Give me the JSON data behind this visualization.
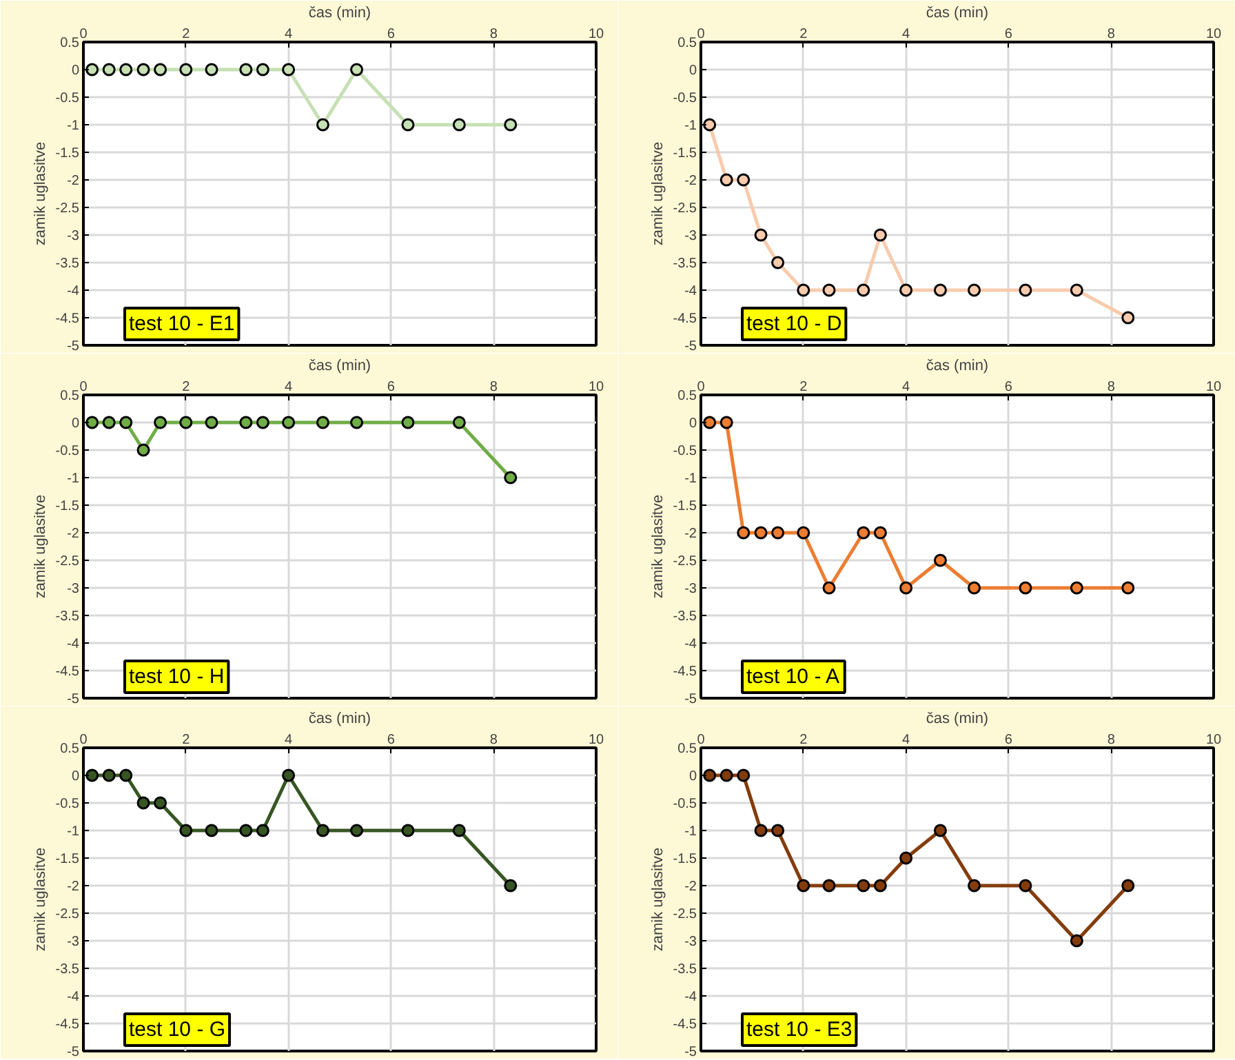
{
  "chart_data": [
    {
      "type": "line",
      "xlabel": "čas (min)",
      "ylabel": "zamik uglasitve",
      "annotations": [
        "test 10 - E1"
      ],
      "xlim": [
        0,
        10
      ],
      "ylim": [
        -5,
        0.5
      ],
      "xticks": [
        0,
        2,
        4,
        6,
        8,
        10
      ],
      "yticks": [
        -5,
        -4.5,
        -4,
        -3.5,
        -3,
        -2.5,
        -2,
        -1.5,
        -1,
        -0.5,
        0,
        0.5
      ],
      "grid": true,
      "marker": "circle",
      "x": [
        0.17,
        0.5,
        0.83,
        1.17,
        1.5,
        2,
        2.5,
        3.17,
        3.5,
        4,
        4.67,
        5.33,
        6.33,
        7.33,
        8.33
      ],
      "series": [
        {
          "color": "#c6e0b4",
          "values": [
            0,
            0,
            0,
            0,
            0,
            0,
            0,
            0,
            0,
            0,
            -1,
            0,
            -1,
            -1,
            -1
          ]
        }
      ]
    },
    {
      "type": "line",
      "xlabel": "čas (min)",
      "ylabel": "zamik uglasitve",
      "annotations": [
        "test 10 - D"
      ],
      "xlim": [
        0,
        10
      ],
      "ylim": [
        -5,
        0.5
      ],
      "xticks": [
        0,
        2,
        4,
        6,
        8,
        10
      ],
      "yticks": [
        -5,
        -4.5,
        -4,
        -3.5,
        -3,
        -2.5,
        -2,
        -1.5,
        -1,
        -0.5,
        0,
        0.5
      ],
      "grid": true,
      "marker": "circle",
      "x": [
        0.17,
        0.5,
        0.83,
        1.17,
        1.5,
        2,
        2.5,
        3.17,
        3.5,
        4,
        4.67,
        5.33,
        6.33,
        7.33,
        8.33
      ],
      "series": [
        {
          "color": "#f8cbad",
          "values": [
            -1,
            -2,
            -2,
            -3,
            -3.5,
            -4,
            -4,
            -4,
            -3,
            -4,
            -4,
            -4,
            -4,
            -4,
            -4.5
          ]
        }
      ]
    },
    {
      "type": "line",
      "xlabel": "čas (min)",
      "ylabel": "zamik uglasitve",
      "annotations": [
        "test 10 - H"
      ],
      "xlim": [
        0,
        10
      ],
      "ylim": [
        -5,
        0.5
      ],
      "xticks": [
        0,
        2,
        4,
        6,
        8,
        10
      ],
      "yticks": [
        -5,
        -4.5,
        -4,
        -3.5,
        -3,
        -2.5,
        -2,
        -1.5,
        -1,
        -0.5,
        0,
        0.5
      ],
      "grid": true,
      "marker": "circle",
      "x": [
        0.17,
        0.5,
        0.83,
        1.17,
        1.5,
        2,
        2.5,
        3.17,
        3.5,
        4,
        4.67,
        5.33,
        6.33,
        7.33,
        8.33
      ],
      "series": [
        {
          "color": "#70ad47",
          "values": [
            0,
            0,
            0,
            -0.5,
            0,
            0,
            0,
            0,
            0,
            0,
            0,
            0,
            0,
            0,
            -1
          ]
        }
      ]
    },
    {
      "type": "line",
      "xlabel": "čas (min)",
      "ylabel": "zamik uglasitve",
      "annotations": [
        "test 10 - A"
      ],
      "xlim": [
        0,
        10
      ],
      "ylim": [
        -5,
        0.5
      ],
      "xticks": [
        0,
        2,
        4,
        6,
        8,
        10
      ],
      "yticks": [
        -5,
        -4.5,
        -4,
        -3.5,
        -3,
        -2.5,
        -2,
        -1.5,
        -1,
        -0.5,
        0,
        0.5
      ],
      "grid": true,
      "marker": "circle",
      "x": [
        0.17,
        0.5,
        0.83,
        1.17,
        1.5,
        2,
        2.5,
        3.17,
        3.5,
        4,
        4.67,
        5.33,
        6.33,
        7.33,
        8.33
      ],
      "series": [
        {
          "color": "#ed7d31",
          "values": [
            0,
            0,
            -2,
            -2,
            -2,
            -2,
            -3,
            -2,
            -2,
            -3,
            -2.5,
            -3,
            -3,
            -3,
            -3
          ]
        }
      ]
    },
    {
      "type": "line",
      "xlabel": "čas (min)",
      "ylabel": "zamik uglasitve",
      "annotations": [
        "test 10 - G"
      ],
      "xlim": [
        0,
        10
      ],
      "ylim": [
        -5,
        0.5
      ],
      "xticks": [
        0,
        2,
        4,
        6,
        8,
        10
      ],
      "yticks": [
        -5,
        -4.5,
        -4,
        -3.5,
        -3,
        -2.5,
        -2,
        -1.5,
        -1,
        -0.5,
        0,
        0.5
      ],
      "grid": true,
      "marker": "circle",
      "x": [
        0.17,
        0.5,
        0.83,
        1.17,
        1.5,
        2,
        2.5,
        3.17,
        3.5,
        4,
        4.67,
        5.33,
        6.33,
        7.33,
        8.33
      ],
      "series": [
        {
          "color": "#375623",
          "values": [
            0,
            0,
            0,
            -0.5,
            -0.5,
            -1,
            -1,
            -1,
            -1,
            0,
            -1,
            -1,
            -1,
            -1,
            -2
          ]
        }
      ]
    },
    {
      "type": "line",
      "xlabel": "čas (min)",
      "ylabel": "zamik uglasitve",
      "annotations": [
        "test 10 - E3"
      ],
      "xlim": [
        0,
        10
      ],
      "ylim": [
        -5,
        0.5
      ],
      "xticks": [
        0,
        2,
        4,
        6,
        8,
        10
      ],
      "yticks": [
        -5,
        -4.5,
        -4,
        -3.5,
        -3,
        -2.5,
        -2,
        -1.5,
        -1,
        -0.5,
        0,
        0.5
      ],
      "grid": true,
      "marker": "circle",
      "x": [
        0.17,
        0.5,
        0.83,
        1.17,
        1.5,
        2,
        2.5,
        3.17,
        3.5,
        4,
        4.67,
        5.33,
        6.33,
        7.33,
        8.33
      ],
      "series": [
        {
          "color": "#843c0c",
          "values": [
            0,
            0,
            0,
            -1,
            -1,
            -2,
            -2,
            -2,
            -2,
            -1.5,
            -1,
            -2,
            -2,
            -3,
            -2
          ]
        }
      ]
    }
  ]
}
